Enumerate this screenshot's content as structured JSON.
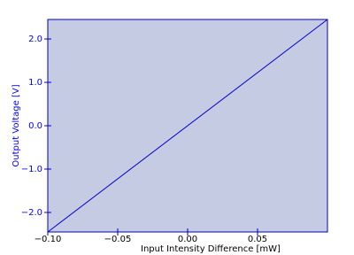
{
  "chart_data": {
    "type": "line",
    "xlabel": "Input Intensity Difference [mW]",
    "ylabel": "Output Voltage [V]",
    "x": [
      -0.1,
      0.1
    ],
    "values": [
      -2.45,
      2.45
    ],
    "color": "#0000cc",
    "background": "#c5cbe3",
    "xlim": [
      -0.1,
      0.1
    ],
    "ylim": [
      -2.45,
      2.45
    ],
    "xticks": [
      {
        "value": -0.1,
        "label": "−0.10"
      },
      {
        "value": -0.05,
        "label": "−0.05"
      },
      {
        "value": 0,
        "label": "0.00"
      },
      0.05
    ],
    "yticks": [
      {
        "value": -2,
        "label": "−2.0"
      },
      {
        "value": -1,
        "label": "−1.0"
      },
      {
        "value": 0,
        "label": "0.0"
      },
      {
        "value": 1,
        "label": "1.0"
      },
      {
        "value": 2,
        "label": "2.0"
      }
    ]
  }
}
